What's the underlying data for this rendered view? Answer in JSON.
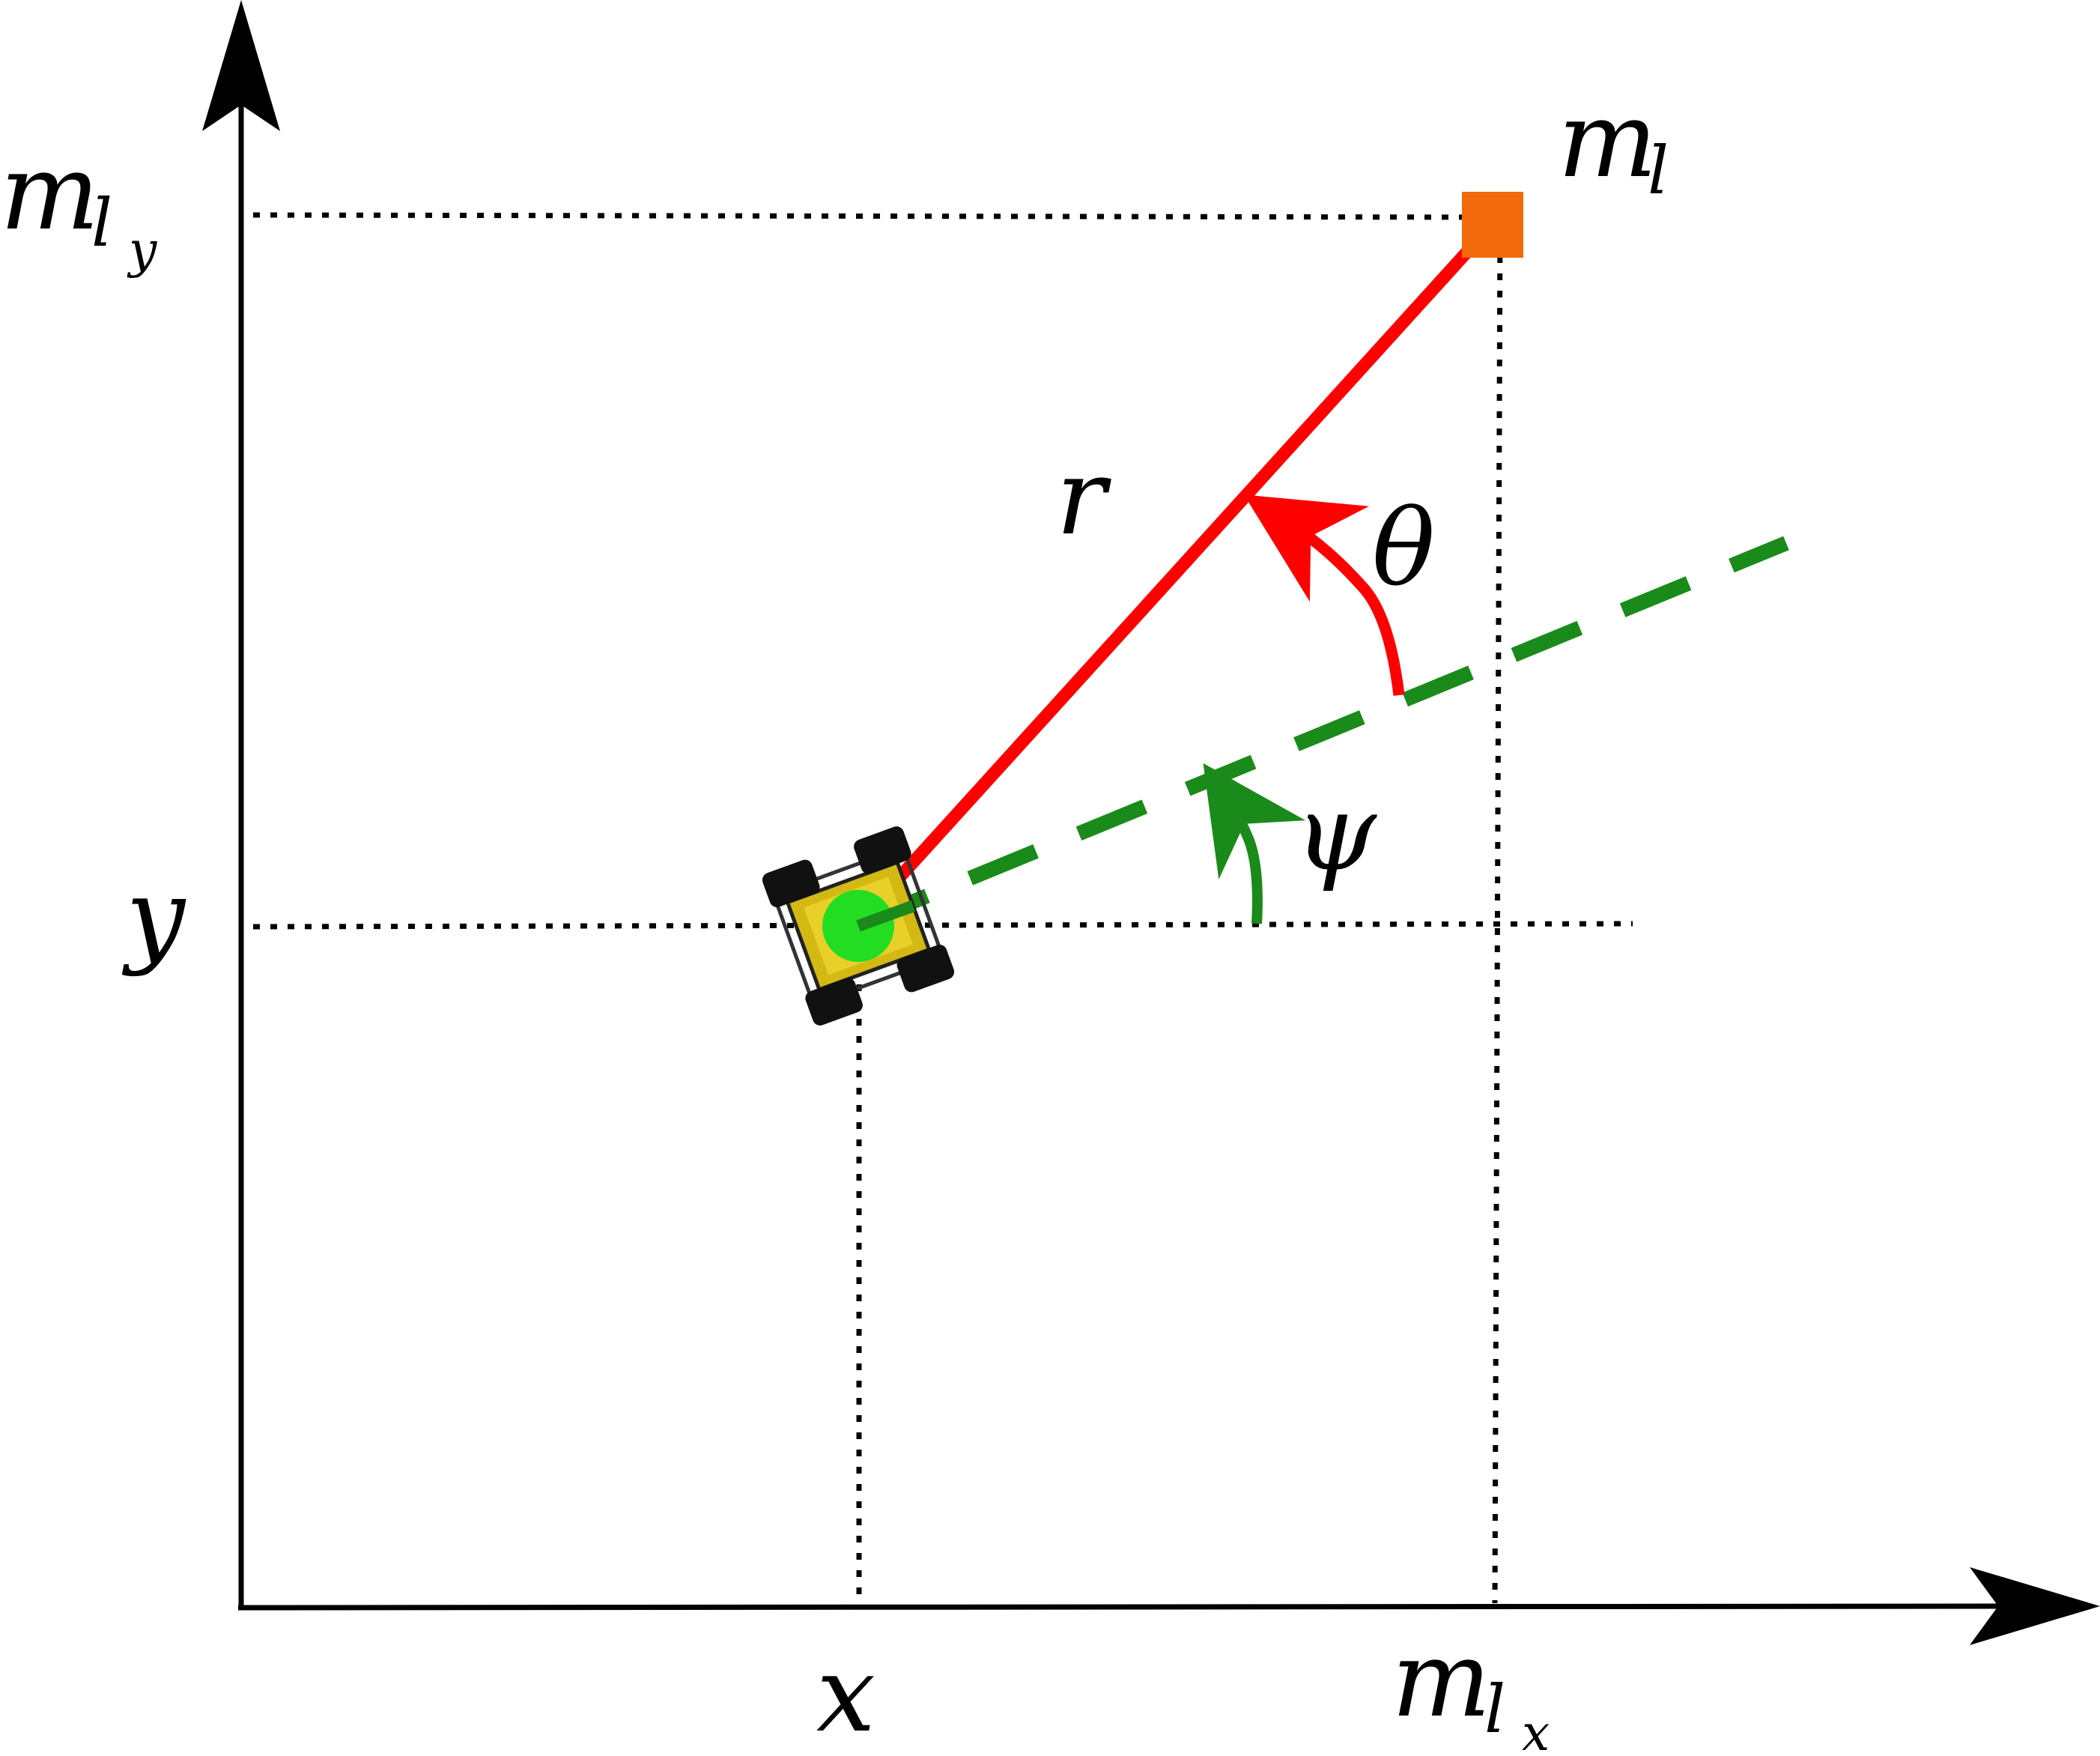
{
  "colors": {
    "axis": "#000000",
    "range_line": "#ff0000",
    "heading_line": "#1a8a1a",
    "landmark": "#f26a0c",
    "robot_body": "#d4b814",
    "robot_center": "#22dd22"
  },
  "labels": {
    "landmark_main": "m",
    "landmark_sub": "l",
    "landmark_y_main": "m",
    "landmark_y_sub": "l",
    "landmark_y_subsub": "y",
    "landmark_x_main": "m",
    "landmark_x_sub": "l",
    "landmark_x_subsub": "x",
    "robot_y": "y",
    "robot_x": "x",
    "range": "r",
    "bearing": "θ",
    "heading": "ψ"
  },
  "icons": {
    "robot": "robot-rover-icon",
    "landmark": "landmark-square-icon"
  }
}
